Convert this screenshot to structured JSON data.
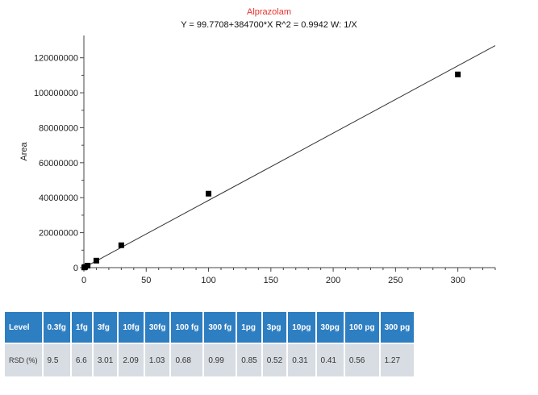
{
  "chart_data": {
    "type": "scatter",
    "title": "Alprazolam",
    "subtitle": "Y = 99.7708+384700*X   R^2 = 0.9942   W: 1/X",
    "xlabel": "",
    "ylabel": "Area",
    "xlim": [
      0,
      330
    ],
    "ylim": [
      0,
      130000000
    ],
    "x_ticks": [
      0,
      50,
      100,
      150,
      200,
      250,
      300
    ],
    "y_ticks": [
      0,
      20000000,
      40000000,
      60000000,
      80000000,
      100000000,
      120000000
    ],
    "grid": false,
    "series": [
      {
        "points": [
          {
            "x": 0.3,
            "y": 115000
          },
          {
            "x": 1,
            "y": 385000
          },
          {
            "x": 3,
            "y": 1150000
          },
          {
            "x": 10,
            "y": 4000000
          },
          {
            "x": 30,
            "y": 12800000
          },
          {
            "x": 100,
            "y": 42300000
          },
          {
            "x": 300,
            "y": 110500000
          }
        ]
      }
    ],
    "fit": {
      "intercept": 99.7708,
      "slope": 384700,
      "x_range": [
        0,
        330
      ],
      "color": "#333333"
    },
    "marker_color": "#000000"
  },
  "table": {
    "header_color": "#2e7ec2",
    "headers": [
      "Level",
      "0.3fg",
      "1fg",
      "3fg",
      "10fg",
      "30fg",
      "100 fg",
      "300 fg",
      "1pg",
      "3pg",
      "10pg",
      "30pg",
      "100 pg",
      "300 pg"
    ],
    "rows": [
      [
        "RSD (%)",
        "9.5",
        "6.6",
        "3.01",
        "2.09",
        "1.03",
        "0.68",
        "0.99",
        "0.85",
        "0.52",
        "0.31",
        "0.41",
        "0.56",
        "1.27"
      ]
    ]
  }
}
